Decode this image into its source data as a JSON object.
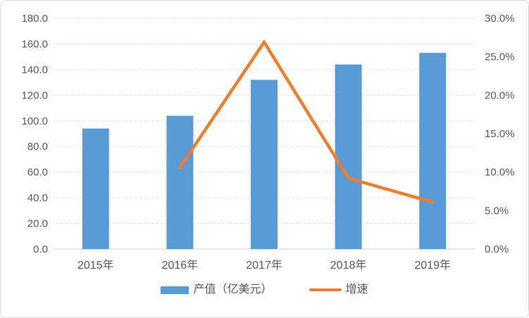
{
  "chart_data": {
    "type": "combo",
    "categories": [
      "2015年",
      "2016年",
      "2017年",
      "2018年",
      "2019年"
    ],
    "series": [
      {
        "name": "产值（亿美元）",
        "type": "bar",
        "axis": "left",
        "color": "#5B9BD5",
        "values": [
          94,
          104,
          132,
          144,
          153
        ]
      },
      {
        "name": "增速",
        "type": "line",
        "axis": "right",
        "color": "#ED7D31",
        "values": [
          null,
          10.6,
          26.9,
          9.2,
          6.1
        ]
      }
    ],
    "left_axis": {
      "min": 0,
      "max": 180,
      "step": 20,
      "tick_labels": [
        "0.0",
        "20.0",
        "40.0",
        "60.0",
        "80.0",
        "100.0",
        "120.0",
        "140.0",
        "160.0",
        "180.0"
      ]
    },
    "right_axis": {
      "min": 0,
      "max": 30,
      "step": 5,
      "tick_labels": [
        "0.0%",
        "5.0%",
        "10.0%",
        "15.0%",
        "20.0%",
        "25.0%",
        "30.0%"
      ]
    },
    "grid": true,
    "legend_position": "bottom",
    "title": ""
  },
  "legend": {
    "bar_label": "产值（亿美元）",
    "line_label": "增速"
  },
  "colors": {
    "bar": "#5B9BD5",
    "line": "#ED7D31",
    "text": "#595959",
    "grid": "#D9D9D9",
    "axis": "#D0CECE",
    "border": "#D9D9D9"
  }
}
